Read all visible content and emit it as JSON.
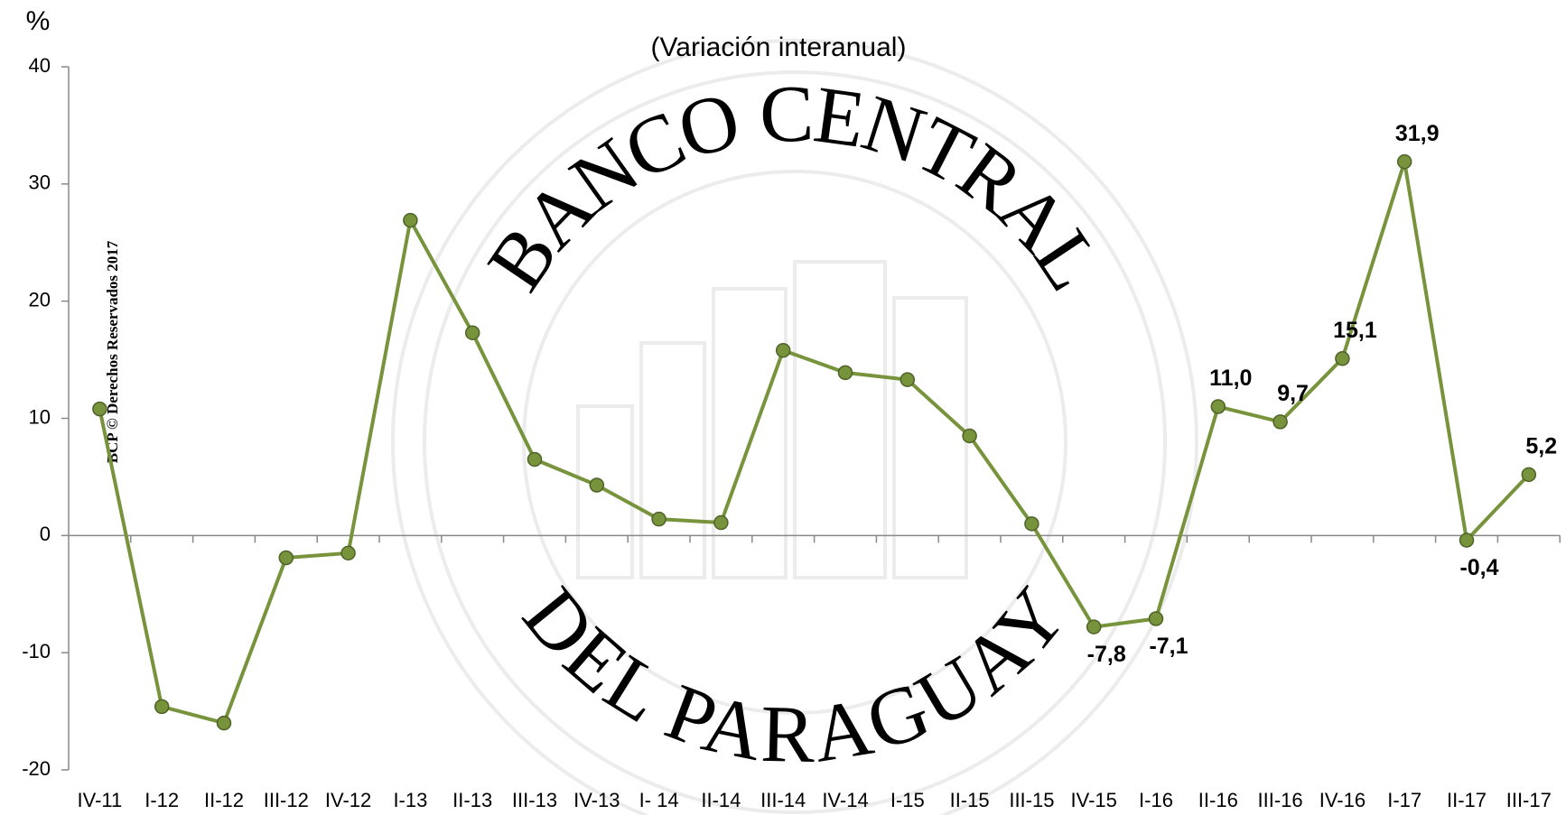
{
  "chart_data": {
    "type": "line",
    "title": "(Variación interanual)",
    "y_label": "%",
    "watermark": "BCP © Derechos Reservados 2017",
    "seal_top": "BANCO CENTRAL",
    "seal_bottom": "DEL PARAGUAY",
    "categories": [
      "IV-11",
      "I-12",
      "II-12",
      "III-12",
      "IV-12",
      "I-13",
      "II-13",
      "III-13",
      "IV-13",
      "I- 14",
      "II-14",
      "III-14",
      "IV-14",
      "I-15",
      "II-15",
      "III-15",
      "IV-15",
      "I-16",
      "II-16",
      "III-16",
      "IV-16",
      "I-17",
      "II-17",
      "III-17"
    ],
    "series": [
      {
        "color": "#77933c",
        "values": [
          10.8,
          -14.6,
          -16,
          -1.9,
          -1.5,
          26.9,
          17.3,
          6.5,
          4.3,
          1.4,
          1.1,
          15.8,
          13.9,
          13.3,
          8.5,
          1.0,
          -7.8,
          -7.1,
          11.0,
          9.7,
          15.1,
          31.9,
          -0.4,
          5.2
        ],
        "value_labels": [
          null,
          null,
          null,
          null,
          null,
          null,
          null,
          null,
          null,
          null,
          null,
          null,
          null,
          null,
          null,
          null,
          "-7,8",
          "-7,1",
          "11,0",
          "9,7",
          "15,1",
          "31,9",
          "-0,4",
          "5,2"
        ]
      }
    ],
    "ylim": [
      -20,
      40
    ],
    "yticks": [
      -20,
      -10,
      0,
      10,
      20,
      30,
      40
    ]
  }
}
